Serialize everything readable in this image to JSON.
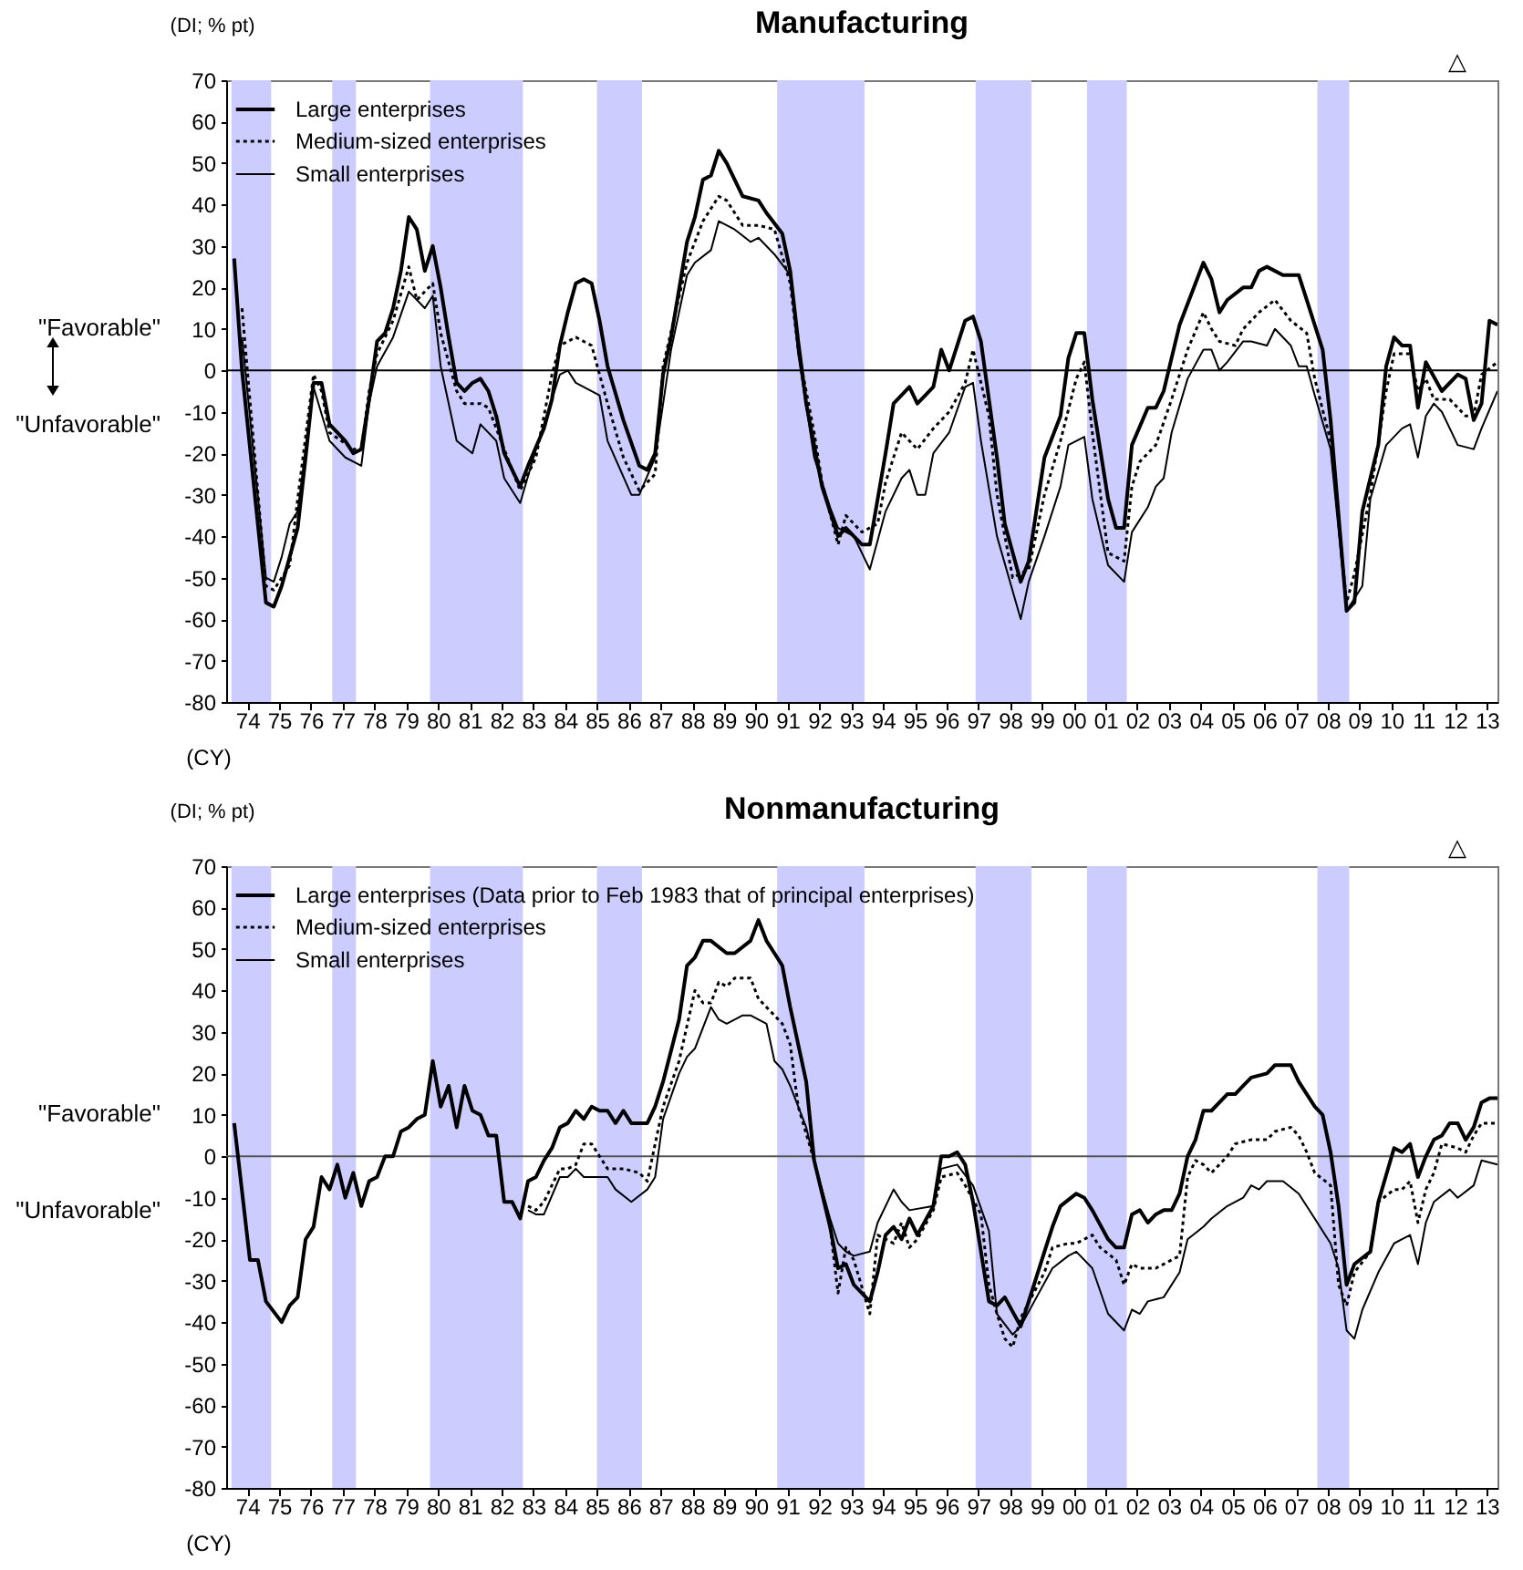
{
  "chart_data": [
    {
      "type": "line",
      "title": "Manufacturing",
      "ylabel": "(DI; % pt)",
      "xlabel": "(CY)",
      "xlim": [
        "1973-10",
        "2013-10"
      ],
      "ylim": [
        -80,
        70
      ],
      "yticks": [
        -80,
        -70,
        -60,
        -50,
        -40,
        -30,
        -20,
        -10,
        0,
        10,
        20,
        30,
        40,
        50,
        60,
        70
      ],
      "xticks": [
        {
          "value": "1974-06",
          "label": "74"
        },
        {
          "value": "1975-06",
          "label": "75"
        },
        {
          "value": "1976-06",
          "label": "76"
        },
        {
          "value": "1977-06",
          "label": "77"
        },
        {
          "value": "1978-06",
          "label": "78"
        },
        {
          "value": "1979-06",
          "label": "79"
        },
        {
          "value": "1980-06",
          "label": "80"
        },
        {
          "value": "1981-06",
          "label": "81"
        },
        {
          "value": "1982-06",
          "label": "82"
        },
        {
          "value": "1983-06",
          "label": "83"
        },
        {
          "value": "1984-06",
          "label": "84"
        },
        {
          "value": "1985-06",
          "label": "85"
        },
        {
          "value": "1986-06",
          "label": "86"
        },
        {
          "value": "1987-06",
          "label": "87"
        },
        {
          "value": "1988-06",
          "label": "88"
        },
        {
          "value": "1989-06",
          "label": "89"
        },
        {
          "value": "1990-06",
          "label": "90"
        },
        {
          "value": "1991-06",
          "label": "91"
        },
        {
          "value": "1992-06",
          "label": "92"
        },
        {
          "value": "1993-06",
          "label": "93"
        },
        {
          "value": "1994-06",
          "label": "94"
        },
        {
          "value": "1995-06",
          "label": "95"
        },
        {
          "value": "1996-06",
          "label": "96"
        },
        {
          "value": "1997-06",
          "label": "97"
        },
        {
          "value": "1998-06",
          "label": "98"
        },
        {
          "value": "1999-06",
          "label": "99"
        },
        {
          "value": "2000-06",
          "label": "00"
        },
        {
          "value": "2001-06",
          "label": "01"
        },
        {
          "value": "2002-06",
          "label": "02"
        },
        {
          "value": "2003-06",
          "label": "03"
        },
        {
          "value": "2004-06",
          "label": "04"
        },
        {
          "value": "2005-06",
          "label": "05"
        },
        {
          "value": "2006-06",
          "label": "06"
        },
        {
          "value": "2007-06",
          "label": "07"
        },
        {
          "value": "2008-06",
          "label": "08"
        },
        {
          "value": "2009-06",
          "label": "09"
        },
        {
          "value": "2010-06",
          "label": "10"
        },
        {
          "value": "2011-06",
          "label": "11"
        },
        {
          "value": "2012-06",
          "label": "12"
        },
        {
          "value": "2013-06",
          "label": "13"
        }
      ],
      "legend": "top left",
      "annotations": [
        "\"Favorable\"",
        "\"Unfavorable\"",
        "△"
      ],
      "bands": [
        {
          "axis": "x",
          "from": "1973-12",
          "to": "1975-03",
          "color": "#ccccff"
        },
        {
          "axis": "x",
          "from": "1977-02",
          "to": "1977-11",
          "color": "#ccccff"
        },
        {
          "axis": "x",
          "from": "1980-03",
          "to": "1983-02",
          "color": "#ccccff"
        },
        {
          "axis": "x",
          "from": "1985-06",
          "to": "1986-11",
          "color": "#ccccff"
        },
        {
          "axis": "x",
          "from": "1991-02",
          "to": "1993-11",
          "color": "#ccccff"
        },
        {
          "axis": "x",
          "from": "1997-05",
          "to": "1999-02",
          "color": "#ccccff"
        },
        {
          "axis": "x",
          "from": "2000-11",
          "to": "2002-02",
          "color": "#ccccff"
        },
        {
          "axis": "x",
          "from": "2008-02",
          "to": "2009-02",
          "color": "#ccccff"
        }
      ],
      "ref_lines": [
        {
          "axis": "y",
          "value": 0,
          "color": "#000000"
        }
      ],
      "series": [
        {
          "name": "Large enterprises",
          "color": "#000000",
          "line_style": "solid",
          "x": [
            "1974-01",
            "1974-04",
            "1975-01",
            "1975-04",
            "1975-07",
            "1976-01",
            "1976-04",
            "1976-07",
            "1976-10",
            "1977-01",
            "1977-04",
            "1977-07",
            "1977-10",
            "1978-01",
            "1978-04",
            "1978-07",
            "1978-10",
            "1979-01",
            "1979-04",
            "1979-07",
            "1979-10",
            "1980-01",
            "1980-04",
            "1980-07",
            "1980-10",
            "1981-01",
            "1981-04",
            "1981-07",
            "1981-10",
            "1982-01",
            "1982-04",
            "1982-07",
            "1983-01",
            "1983-04",
            "1983-10",
            "1984-01",
            "1984-04",
            "1984-07",
            "1984-10",
            "1985-01",
            "1985-04",
            "1985-07",
            "1985-10",
            "1986-04",
            "1986-10",
            "1987-01",
            "1987-04",
            "1987-07",
            "1987-10",
            "1988-04",
            "1988-07",
            "1988-10",
            "1989-01",
            "1989-04",
            "1989-07",
            "1990-01",
            "1990-07",
            "1990-10",
            "1991-04",
            "1991-07",
            "1991-10",
            "1992-01",
            "1992-07",
            "1993-01",
            "1993-04",
            "1993-10",
            "1994-01",
            "1994-07",
            "1994-10",
            "1995-04",
            "1995-07",
            "1996-01",
            "1996-04",
            "1996-07",
            "1997-01",
            "1997-04",
            "1997-07",
            "1998-01",
            "1998-04",
            "1998-10",
            "1999-01",
            "1999-07",
            "2000-01",
            "2000-04",
            "2000-07",
            "2000-10",
            "2001-01",
            "2001-07",
            "2001-10",
            "2002-01",
            "2002-04",
            "2002-10",
            "2003-01",
            "2003-04",
            "2003-07",
            "2003-10",
            "2004-07",
            "2004-10",
            "2005-01",
            "2005-04",
            "2005-10",
            "2006-01",
            "2006-04",
            "2006-07",
            "2007-01",
            "2007-07",
            "2007-10",
            "2008-04",
            "2008-07",
            "2009-01",
            "2009-04",
            "2009-07",
            "2010-01",
            "2010-04",
            "2010-07",
            "2010-10",
            "2011-01",
            "2011-04",
            "2011-07",
            "2012-01",
            "2012-07",
            "2012-10",
            "2013-01",
            "2013-04",
            "2013-07",
            "2013-10"
          ],
          "values": [
            27,
            0,
            -56,
            -57,
            -52,
            -38,
            -21,
            -3,
            -3,
            -13,
            -15,
            -17,
            -20,
            -19,
            -7,
            7,
            9,
            15,
            24,
            37,
            34,
            24,
            30,
            20,
            8,
            -3,
            -5,
            -3,
            -2,
            -5,
            -11,
            -20,
            -28,
            -23,
            -14,
            -7,
            6,
            14,
            21,
            22,
            21,
            12,
            1,
            -12,
            -23,
            -24,
            -20,
            -1,
            8,
            31,
            37,
            46,
            47,
            53,
            50,
            42,
            41,
            38,
            33,
            24,
            7,
            -8,
            -28,
            -40,
            -38,
            -42,
            -42,
            -20,
            -8,
            -4,
            -8,
            -4,
            5,
            0,
            12,
            13,
            7,
            -21,
            -37,
            -51,
            -46,
            -21,
            -11,
            3,
            9,
            9,
            -7,
            -31,
            -38,
            -38,
            -18,
            -9,
            -9,
            -5,
            3,
            11,
            26,
            22,
            14,
            17,
            20,
            20,
            24,
            25,
            23,
            23,
            17,
            5,
            -12,
            -58,
            -56,
            -34,
            -18,
            1,
            8,
            6,
            6,
            -9,
            2,
            -5,
            -1,
            -2,
            -12,
            -8,
            12,
            11
          ]
        },
        {
          "name": "Medium-sized enterprises",
          "color": "#000000",
          "line_style": "dotted",
          "x": [
            "1974-04",
            "1975-01",
            "1975-04",
            "1975-10",
            "1976-01",
            "1976-07",
            "1976-10",
            "1977-01",
            "1977-10",
            "1978-01",
            "1978-04",
            "1978-07",
            "1979-01",
            "1979-07",
            "1979-10",
            "1980-04",
            "1980-07",
            "1981-01",
            "1981-04",
            "1981-10",
            "1982-01",
            "1982-04",
            "1983-01",
            "1983-07",
            "1984-01",
            "1984-04",
            "1984-10",
            "1985-04",
            "1985-10",
            "1986-04",
            "1986-10",
            "1987-04",
            "1987-07",
            "1988-04",
            "1988-10",
            "1989-04",
            "1989-07",
            "1990-01",
            "1990-07",
            "1991-01",
            "1991-07",
            "1991-10",
            "1992-04",
            "1992-07",
            "1993-01",
            "1993-04",
            "1993-10",
            "1994-04",
            "1994-07",
            "1995-01",
            "1995-07",
            "1996-01",
            "1996-07",
            "1997-01",
            "1997-04",
            "1997-10",
            "1998-01",
            "1998-07",
            "1999-01",
            "1999-07",
            "2000-01",
            "2000-07",
            "2000-10",
            "2001-01",
            "2001-07",
            "2002-01",
            "2002-04",
            "2002-07",
            "2003-01",
            "2003-07",
            "2004-01",
            "2004-07",
            "2004-10",
            "2005-01",
            "2005-07",
            "2005-10",
            "2006-04",
            "2006-10",
            "2007-04",
            "2007-10",
            "2008-01",
            "2008-07",
            "2009-01",
            "2009-04",
            "2009-10",
            "2010-04",
            "2010-07",
            "2011-01",
            "2011-04",
            "2011-07",
            "2011-10",
            "2012-04",
            "2012-10",
            "2013-01",
            "2013-04",
            "2013-10"
          ],
          "values": [
            15,
            -52,
            -53,
            -47,
            -31,
            -1,
            -5,
            -15,
            -19,
            -19,
            -5,
            4,
            12,
            25,
            17,
            21,
            9,
            -5,
            -8,
            -8,
            -9,
            -14,
            -29,
            -21,
            -1,
            6,
            8,
            6,
            -8,
            -21,
            -29,
            -25,
            1,
            26,
            36,
            42,
            41,
            35,
            35,
            34,
            21,
            5,
            -15,
            -27,
            -42,
            -35,
            -39,
            -37,
            -27,
            -15,
            -19,
            -14,
            -10,
            -3,
            5,
            -11,
            -30,
            -50,
            -48,
            -30,
            -17,
            -2,
            2,
            -15,
            -44,
            -46,
            -28,
            -22,
            -18,
            -7,
            5,
            14,
            10,
            7,
            6,
            10,
            14,
            17,
            12,
            9,
            -2,
            -17,
            -56,
            -49,
            -30,
            -5,
            4,
            4,
            -5,
            -2,
            -7,
            -7,
            -11,
            -11,
            -1,
            2
          ]
        },
        {
          "name": "Small enterprises",
          "color": "#000000",
          "line_style": "solid",
          "x": [
            "1974-04",
            "1975-01",
            "1975-04",
            "1975-07",
            "1975-10",
            "1976-01",
            "1976-07",
            "1977-01",
            "1977-07",
            "1978-01",
            "1978-04",
            "1978-07",
            "1979-01",
            "1979-07",
            "1980-01",
            "1980-04",
            "1980-07",
            "1981-01",
            "1981-07",
            "1981-10",
            "1982-04",
            "1982-07",
            "1983-01",
            "1983-07",
            "1984-04",
            "1984-07",
            "1984-10",
            "1985-07",
            "1985-10",
            "1986-07",
            "1986-10",
            "1987-04",
            "1987-10",
            "1988-04",
            "1988-07",
            "1989-01",
            "1989-04",
            "1989-10",
            "1990-04",
            "1990-07",
            "1991-01",
            "1991-07",
            "1991-10",
            "1992-04",
            "1992-10",
            "1993-01",
            "1993-07",
            "1994-01",
            "1994-07",
            "1995-01",
            "1995-04",
            "1995-07",
            "1995-10",
            "1996-01",
            "1996-07",
            "1997-01",
            "1997-04",
            "1997-07",
            "1998-01",
            "1998-10",
            "1999-01",
            "1999-07",
            "2000-01",
            "2000-04",
            "2000-10",
            "2001-01",
            "2001-07",
            "2002-01",
            "2002-04",
            "2002-10",
            "2003-01",
            "2003-04",
            "2003-07",
            "2004-01",
            "2004-07",
            "2004-10",
            "2005-01",
            "2005-04",
            "2005-10",
            "2006-01",
            "2006-07",
            "2006-10",
            "2007-04",
            "2007-07",
            "2007-10",
            "2008-01",
            "2008-07",
            "2009-01",
            "2009-07",
            "2009-10",
            "2010-04",
            "2010-10",
            "2011-01",
            "2011-04",
            "2011-07",
            "2011-10",
            "2012-01",
            "2012-04",
            "2012-07",
            "2013-01",
            "2013-04",
            "2013-10"
          ],
          "values": [
            8,
            -50,
            -51,
            -45,
            -37,
            -34,
            -4,
            -17,
            -21,
            -23,
            -8,
            1,
            8,
            19,
            15,
            18,
            1,
            -17,
            -20,
            -13,
            -17,
            -26,
            -32,
            -19,
            -1,
            0,
            -3,
            -6,
            -17,
            -30,
            -30,
            -21,
            5,
            23,
            26,
            29,
            36,
            34,
            31,
            32,
            28,
            23,
            4,
            -21,
            -33,
            -38,
            -40,
            -48,
            -34,
            -26,
            -24,
            -30,
            -30,
            -20,
            -15,
            -4,
            -3,
            -17,
            -40,
            -60,
            -51,
            -40,
            -28,
            -18,
            -16,
            -31,
            -47,
            -51,
            -39,
            -33,
            -28,
            -26,
            -15,
            -2,
            5,
            5,
            0,
            2,
            7,
            7,
            6,
            10,
            6,
            1,
            1,
            -6,
            -19,
            -58,
            -52,
            -31,
            -18,
            -14,
            -13,
            -21,
            -11,
            -8,
            -10,
            -14,
            -18,
            -19,
            -14,
            -5
          ]
        }
      ]
    },
    {
      "type": "line",
      "title": "Nonmanufacturing",
      "ylabel": "(DI; % pt)",
      "xlabel": "(CY)",
      "xlim": [
        "1973-10",
        "2013-10"
      ],
      "ylim": [
        -80,
        70
      ],
      "yticks": [
        -80,
        -70,
        -60,
        -50,
        -40,
        -30,
        -20,
        -10,
        0,
        10,
        20,
        30,
        40,
        50,
        60,
        70
      ],
      "xticks": [
        {
          "value": "1974-06",
          "label": "74"
        },
        {
          "value": "1975-06",
          "label": "75"
        },
        {
          "value": "1976-06",
          "label": "76"
        },
        {
          "value": "1977-06",
          "label": "77"
        },
        {
          "value": "1978-06",
          "label": "78"
        },
        {
          "value": "1979-06",
          "label": "79"
        },
        {
          "value": "1980-06",
          "label": "80"
        },
        {
          "value": "1981-06",
          "label": "81"
        },
        {
          "value": "1982-06",
          "label": "82"
        },
        {
          "value": "1983-06",
          "label": "83"
        },
        {
          "value": "1984-06",
          "label": "84"
        },
        {
          "value": "1985-06",
          "label": "85"
        },
        {
          "value": "1986-06",
          "label": "86"
        },
        {
          "value": "1987-06",
          "label": "87"
        },
        {
          "value": "1988-06",
          "label": "88"
        },
        {
          "value": "1989-06",
          "label": "89"
        },
        {
          "value": "1990-06",
          "label": "90"
        },
        {
          "value": "1991-06",
          "label": "91"
        },
        {
          "value": "1992-06",
          "label": "92"
        },
        {
          "value": "1993-06",
          "label": "93"
        },
        {
          "value": "1994-06",
          "label": "94"
        },
        {
          "value": "1995-06",
          "label": "95"
        },
        {
          "value": "1996-06",
          "label": "96"
        },
        {
          "value": "1997-06",
          "label": "97"
        },
        {
          "value": "1998-06",
          "label": "98"
        },
        {
          "value": "1999-06",
          "label": "99"
        },
        {
          "value": "2000-06",
          "label": "00"
        },
        {
          "value": "2001-06",
          "label": "01"
        },
        {
          "value": "2002-06",
          "label": "02"
        },
        {
          "value": "2003-06",
          "label": "03"
        },
        {
          "value": "2004-06",
          "label": "04"
        },
        {
          "value": "2005-06",
          "label": "05"
        },
        {
          "value": "2006-06",
          "label": "06"
        },
        {
          "value": "2007-06",
          "label": "07"
        },
        {
          "value": "2008-06",
          "label": "08"
        },
        {
          "value": "2009-06",
          "label": "09"
        },
        {
          "value": "2010-06",
          "label": "10"
        },
        {
          "value": "2011-06",
          "label": "11"
        },
        {
          "value": "2012-06",
          "label": "12"
        },
        {
          "value": "2013-06",
          "label": "13"
        }
      ],
      "legend": "top left",
      "annotations": [
        "\"Favorable\"",
        "\"Unfavorable\"",
        "△"
      ],
      "bands": [
        {
          "axis": "x",
          "from": "1973-12",
          "to": "1975-03",
          "color": "#ccccff"
        },
        {
          "axis": "x",
          "from": "1977-02",
          "to": "1977-11",
          "color": "#ccccff"
        },
        {
          "axis": "x",
          "from": "1980-03",
          "to": "1983-02",
          "color": "#ccccff"
        },
        {
          "axis": "x",
          "from": "1985-06",
          "to": "1986-11",
          "color": "#ccccff"
        },
        {
          "axis": "x",
          "from": "1991-02",
          "to": "1993-11",
          "color": "#ccccff"
        },
        {
          "axis": "x",
          "from": "1997-05",
          "to": "1999-02",
          "color": "#ccccff"
        },
        {
          "axis": "x",
          "from": "2000-11",
          "to": "2002-02",
          "color": "#ccccff"
        },
        {
          "axis": "x",
          "from": "2008-02",
          "to": "2009-02",
          "color": "#ccccff"
        }
      ],
      "ref_lines": [
        {
          "axis": "y",
          "value": 0,
          "color": "#555555"
        }
      ],
      "series": [
        {
          "name": "Large enterprises (Data prior to Feb 1983 that of principal enterprises)",
          "color": "#000000",
          "line_style": "solid",
          "x": [
            "1974-01",
            "1974-07",
            "1974-10",
            "1975-01",
            "1975-07",
            "1975-10",
            "1976-01",
            "1976-04",
            "1976-07",
            "1976-10",
            "1977-01",
            "1977-04",
            "1977-07",
            "1977-10",
            "1978-01",
            "1978-04",
            "1978-07",
            "1978-10",
            "1979-01",
            "1979-04",
            "1979-07",
            "1979-10",
            "1980-01",
            "1980-04",
            "1980-07",
            "1980-10",
            "1981-01",
            "1981-04",
            "1981-07",
            "1981-10",
            "1982-01",
            "1982-04",
            "1982-07",
            "1982-10",
            "1983-01",
            "1983-04",
            "1983-07",
            "1983-10",
            "1984-01",
            "1984-04",
            "1984-07",
            "1984-10",
            "1985-01",
            "1985-04",
            "1985-07",
            "1985-10",
            "1986-01",
            "1986-04",
            "1986-07",
            "1987-01",
            "1987-04",
            "1987-07",
            "1988-01",
            "1988-04",
            "1988-07",
            "1988-10",
            "1989-01",
            "1989-07",
            "1989-10",
            "1990-04",
            "1990-07",
            "1990-10",
            "1991-01",
            "1991-04",
            "1991-07",
            "1992-01",
            "1992-04",
            "1992-10",
            "1993-01",
            "1993-04",
            "1993-07",
            "1994-01",
            "1994-04",
            "1994-07",
            "1994-10",
            "1995-01",
            "1995-04",
            "1995-07",
            "1996-01",
            "1996-04",
            "1996-07",
            "1996-10",
            "1997-01",
            "1997-04",
            "1997-10",
            "1998-01",
            "1998-04",
            "1998-10",
            "1999-01",
            "1999-07",
            "1999-10",
            "2000-01",
            "2000-07",
            "2000-10",
            "2001-01",
            "2001-07",
            "2001-10",
            "2002-01",
            "2002-04",
            "2002-07",
            "2002-10",
            "2003-01",
            "2003-04",
            "2003-07",
            "2003-10",
            "2004-01",
            "2004-04",
            "2004-07",
            "2004-10",
            "2005-04",
            "2005-07",
            "2005-10",
            "2006-01",
            "2006-07",
            "2006-10",
            "2007-04",
            "2007-07",
            "2008-01",
            "2008-04",
            "2008-07",
            "2008-10",
            "2009-01",
            "2009-04",
            "2009-10",
            "2010-01",
            "2010-07",
            "2010-10",
            "2011-01",
            "2011-04",
            "2011-07",
            "2011-10",
            "2012-01",
            "2012-04",
            "2012-07",
            "2012-10",
            "2013-01",
            "2013-04",
            "2013-07",
            "2013-10"
          ],
          "values": [
            8,
            -25,
            -25,
            -35,
            -40,
            -36,
            -34,
            -20,
            -17,
            -5,
            -8,
            -2,
            -10,
            -4,
            -12,
            -6,
            -5,
            0,
            0,
            6,
            7,
            9,
            10,
            23,
            12,
            17,
            7,
            17,
            11,
            10,
            5,
            5,
            -11,
            -11,
            -15,
            -6,
            -5,
            -1,
            2,
            7,
            8,
            11,
            9,
            12,
            11,
            11,
            8,
            11,
            8,
            8,
            12,
            18,
            33,
            46,
            48,
            52,
            52,
            49,
            49,
            52,
            57,
            52,
            49,
            46,
            36,
            18,
            -1,
            -17,
            -27,
            -26,
            -31,
            -35,
            -28,
            -19,
            -17,
            -20,
            -15,
            -19,
            -12,
            0,
            0,
            1,
            -2,
            -11,
            -35,
            -36,
            -34,
            -41,
            -35,
            -23,
            -17,
            -12,
            -9,
            -10,
            -13,
            -20,
            -22,
            -22,
            -14,
            -13,
            -16,
            -14,
            -13,
            -13,
            -9,
            0,
            4,
            11,
            11,
            15,
            15,
            17,
            19,
            20,
            22,
            22,
            18,
            12,
            10,
            1,
            -12,
            -31,
            -26,
            -23,
            -11,
            2,
            1,
            3,
            -5,
            0,
            4,
            5,
            8,
            8,
            4,
            7,
            13,
            14,
            14
          ]
        },
        {
          "name": "Medium-sized enterprises",
          "color": "#000000",
          "line_style": "dotted",
          "x": [
            "1983-04",
            "1983-07",
            "1983-10",
            "1984-04",
            "1984-07",
            "1984-10",
            "1985-01",
            "1985-04",
            "1985-07",
            "1985-10",
            "1986-04",
            "1986-10",
            "1987-01",
            "1987-04",
            "1987-07",
            "1988-01",
            "1988-07",
            "1988-10",
            "1989-01",
            "1989-04",
            "1989-07",
            "1989-10",
            "1990-04",
            "1990-07",
            "1990-10",
            "1991-04",
            "1991-07",
            "1991-10",
            "1992-04",
            "1992-10",
            "1993-01",
            "1993-04",
            "1993-07",
            "1994-01",
            "1994-04",
            "1994-10",
            "1995-01",
            "1995-04",
            "1995-07",
            "1996-01",
            "1996-04",
            "1996-10",
            "1997-01",
            "1997-07",
            "1997-10",
            "1998-01",
            "1998-04",
            "1998-07",
            "1998-10",
            "1999-07",
            "1999-10",
            "2000-04",
            "2000-07",
            "2001-01",
            "2001-04",
            "2001-10",
            "2002-01",
            "2002-04",
            "2002-07",
            "2003-01",
            "2003-07",
            "2003-10",
            "2004-01",
            "2004-04",
            "2004-07",
            "2004-10",
            "2005-04",
            "2005-07",
            "2006-01",
            "2006-07",
            "2006-10",
            "2007-04",
            "2007-07",
            "2007-10",
            "2008-01",
            "2008-07",
            "2008-10",
            "2009-01",
            "2009-04",
            "2009-10",
            "2010-01",
            "2010-07",
            "2010-10",
            "2011-01",
            "2011-04",
            "2011-07",
            "2011-10",
            "2012-01",
            "2012-07",
            "2012-10",
            "2013-01",
            "2013-04",
            "2013-10"
          ],
          "values": [
            -12,
            -13,
            -11,
            -3,
            -3,
            -2,
            3,
            3,
            0,
            -3,
            -3,
            -4,
            -6,
            3,
            12,
            23,
            40,
            37,
            37,
            42,
            41,
            43,
            43,
            38,
            36,
            32,
            27,
            12,
            -1,
            -17,
            -33,
            -22,
            -25,
            -38,
            -19,
            -21,
            -16,
            -22,
            -20,
            -13,
            -5,
            -4,
            -7,
            -14,
            -31,
            -38,
            -44,
            -46,
            -39,
            -28,
            -22,
            -21,
            -21,
            -19,
            -22,
            -25,
            -31,
            -26,
            -27,
            -27,
            -25,
            -24,
            -5,
            -1,
            -2,
            -4,
            0,
            3,
            4,
            4,
            6,
            7,
            5,
            1,
            -4,
            -7,
            -31,
            -36,
            -28,
            -23,
            -11,
            -8,
            -8,
            -6,
            -16,
            -8,
            -4,
            3,
            2,
            1,
            5,
            8,
            8
          ]
        },
        {
          "name": "Small enterprises",
          "color": "#000000",
          "line_style": "solid",
          "x": [
            "1983-04",
            "1983-07",
            "1983-10",
            "1984-04",
            "1984-07",
            "1984-10",
            "1985-01",
            "1985-10",
            "1986-01",
            "1986-07",
            "1987-01",
            "1987-04",
            "1987-07",
            "1988-01",
            "1988-04",
            "1988-07",
            "1989-01",
            "1989-04",
            "1989-07",
            "1990-01",
            "1990-04",
            "1990-10",
            "1991-01",
            "1991-04",
            "1991-07",
            "1992-01",
            "1992-04",
            "1992-10",
            "1993-01",
            "1993-04",
            "1993-07",
            "1994-01",
            "1994-04",
            "1994-10",
            "1995-01",
            "1995-04",
            "1996-01",
            "1996-04",
            "1996-10",
            "1997-04",
            "1997-10",
            "1998-01",
            "1998-07",
            "1998-10",
            "1999-04",
            "1999-10",
            "2000-04",
            "2000-07",
            "2001-01",
            "2001-07",
            "2002-01",
            "2002-04",
            "2002-07",
            "2002-10",
            "2003-04",
            "2003-10",
            "2004-01",
            "2004-07",
            "2004-10",
            "2005-04",
            "2005-10",
            "2006-01",
            "2006-04",
            "2006-07",
            "2007-01",
            "2007-07",
            "2008-01",
            "2008-07",
            "2008-10",
            "2009-01",
            "2009-04",
            "2009-07",
            "2010-01",
            "2010-07",
            "2010-10",
            "2011-01",
            "2011-04",
            "2011-07",
            "2011-10",
            "2012-04",
            "2012-07",
            "2013-01",
            "2013-04",
            "2013-10"
          ],
          "values": [
            -13,
            -14,
            -14,
            -5,
            -5,
            -3,
            -5,
            -5,
            -8,
            -11,
            -8,
            -5,
            9,
            20,
            24,
            26,
            36,
            33,
            32,
            34,
            34,
            32,
            23,
            21,
            17,
            7,
            -1,
            -15,
            -21,
            -23,
            -24,
            -23,
            -16,
            -8,
            -11,
            -13,
            -12,
            -3,
            -2,
            -7,
            -18,
            -38,
            -43,
            -41,
            -34,
            -27,
            -24,
            -23,
            -27,
            -38,
            -42,
            -37,
            -38,
            -35,
            -34,
            -28,
            -20,
            -17,
            -15,
            -12,
            -10,
            -7,
            -8,
            -6,
            -6,
            -9,
            -15,
            -21,
            -27,
            -42,
            -44,
            -37,
            -28,
            -21,
            -20,
            -19,
            -26,
            -16,
            -11,
            -8,
            -10,
            -7,
            -1,
            -2
          ]
        }
      ]
    }
  ]
}
